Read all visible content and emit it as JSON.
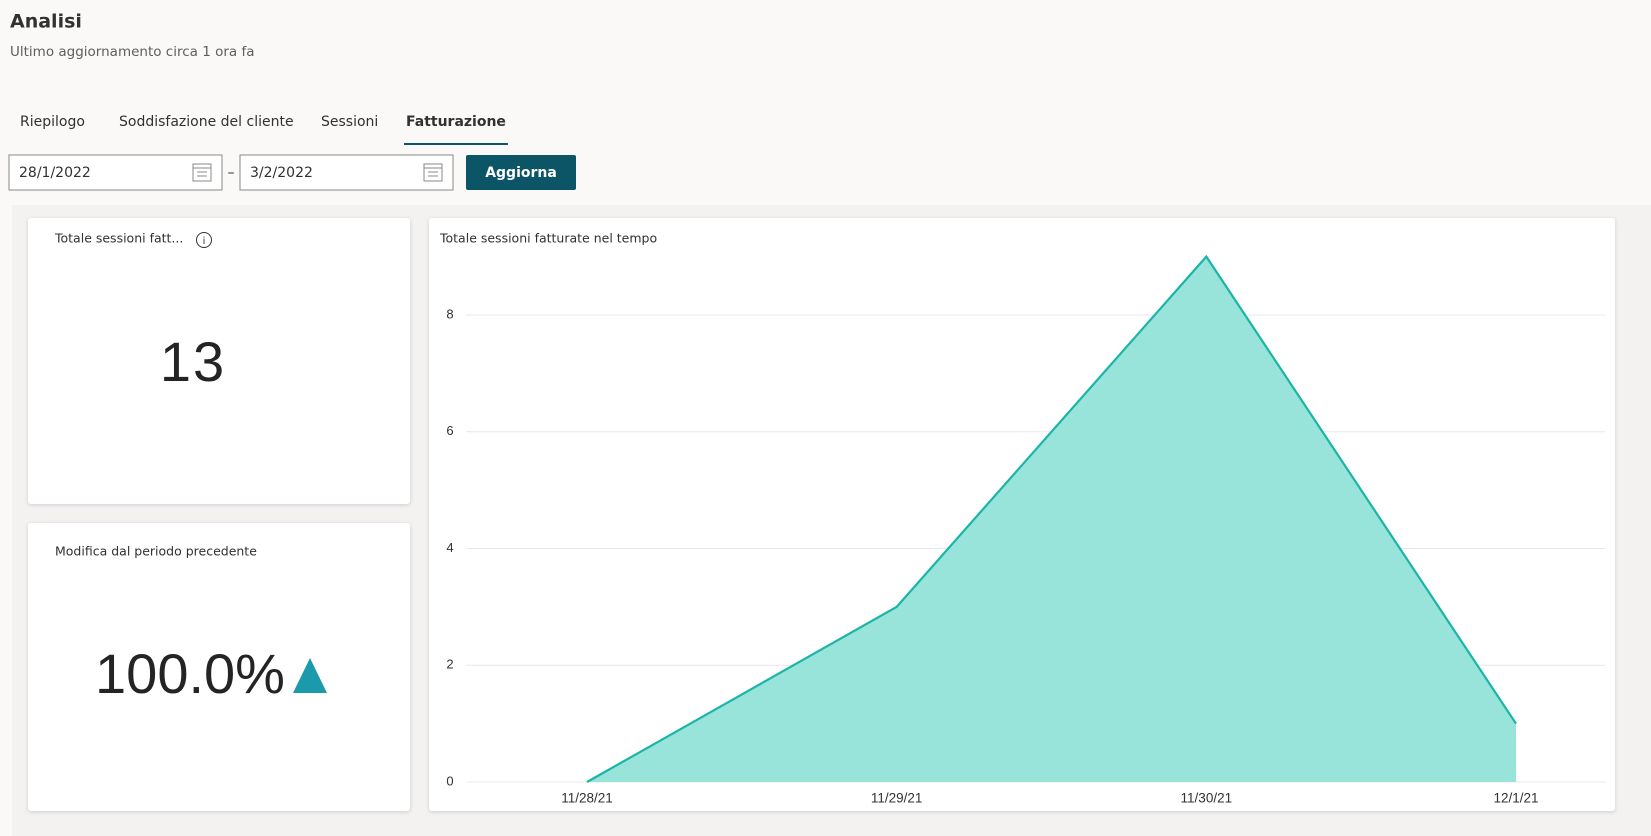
{
  "header": {
    "title": "Analisi",
    "subtitle": "Ultimo aggiornamento circa 1 ora fa"
  },
  "tabs": [
    "Riepilogo",
    "Soddisfazione del cliente",
    "Sessioni",
    "Fatturazione"
  ],
  "active_tab": 3,
  "date_range": {
    "start": "28/1/2022",
    "separator": "–",
    "end": "3/2/2022",
    "button": "Aggiorna"
  },
  "cards": [
    {
      "title": "Totale sessioni fatt...",
      "value": "13"
    },
    {
      "title": "Modifica dal periodo precedente",
      "value": "100.0%"
    }
  ],
  "chart_data": {
    "type": "area",
    "title": "Totale sessioni fatturate nel tempo",
    "categories": [
      "11/28/21",
      "11/29/21",
      "11/30/21",
      "12/1/21"
    ],
    "values": [
      0,
      3,
      9,
      1
    ],
    "color": "#1bb5a8",
    "fill": "#98e3da",
    "ylim": [
      0,
      9
    ],
    "yticks": [
      0,
      2,
      4,
      6,
      8
    ],
    "grid": true
  }
}
